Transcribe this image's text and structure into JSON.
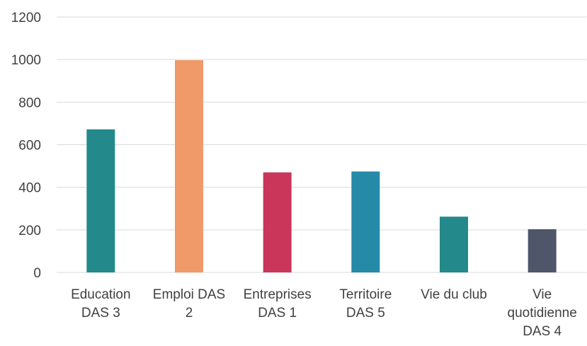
{
  "chart_data": {
    "type": "bar",
    "categories": [
      [
        "Education",
        "DAS 3"
      ],
      [
        "Emploi DAS",
        "2"
      ],
      [
        "Entreprises",
        "DAS 1"
      ],
      [
        "Territoire",
        "DAS 5"
      ],
      [
        "Vie du club"
      ],
      [
        "Vie",
        "quotidienne",
        "DAS 4"
      ]
    ],
    "values": [
      672,
      997,
      470,
      474,
      262,
      203
    ],
    "colors": [
      "#23898a",
      "#ef9a68",
      "#c9365a",
      "#2589a8",
      "#23898a",
      "#50566a"
    ],
    "ylim": [
      0,
      1200
    ],
    "yticks": [
      0,
      200,
      400,
      600,
      800,
      1000,
      1200
    ],
    "grid": true,
    "title": "",
    "xlabel": "",
    "ylabel": ""
  }
}
